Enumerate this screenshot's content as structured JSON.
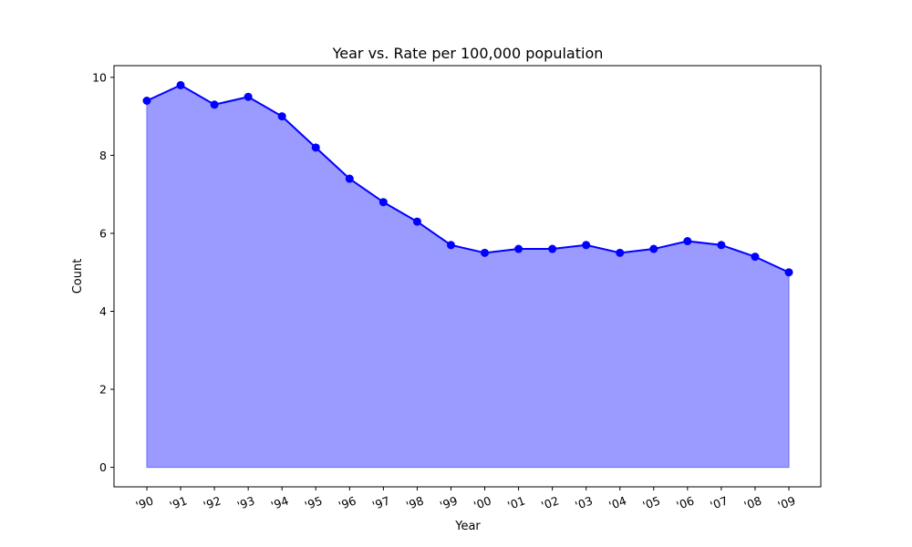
{
  "chart_data": {
    "type": "area",
    "title": "Year vs. Rate per 100,000 population",
    "xlabel": "Year",
    "ylabel": "Count",
    "categories": [
      "'90",
      "'91",
      "'92",
      "'93",
      "'94",
      "'95",
      "'96",
      "'97",
      "'98",
      "'99",
      "'00",
      "'01",
      "'02",
      "'03",
      "'04",
      "'05",
      "'06",
      "'07",
      "'08",
      "'09"
    ],
    "values": [
      9.4,
      9.8,
      9.3,
      9.5,
      9.0,
      8.2,
      7.4,
      6.8,
      6.3,
      5.7,
      5.5,
      5.6,
      5.6,
      5.7,
      5.5,
      5.6,
      5.8,
      5.7,
      5.4,
      5.0
    ],
    "ylim": [
      -0.5,
      10.3
    ],
    "yticks": [
      0,
      2,
      4,
      6,
      8,
      10
    ],
    "grid": false,
    "line_color": "#0000ff",
    "fill_color": "#9a9aff"
  }
}
